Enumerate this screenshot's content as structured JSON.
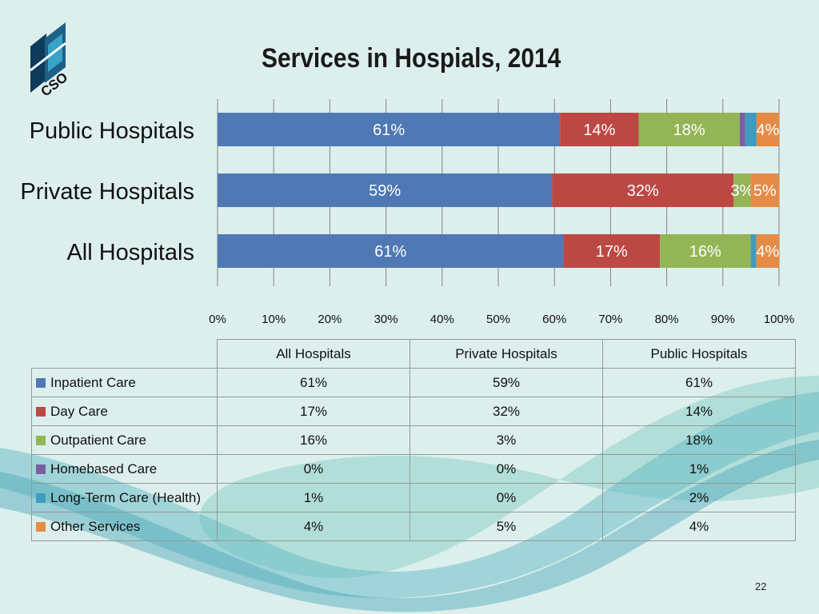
{
  "page": {
    "number": "22"
  },
  "logo": {
    "text": "CSO"
  },
  "chart_data": {
    "type": "bar",
    "orientation": "horizontal",
    "stacked": "percent",
    "title": "Services in Hospials, 2014",
    "categories": [
      "Public Hospitals",
      "Private Hospitals",
      "All Hospitals"
    ],
    "series": [
      {
        "name": "Inpatient Care",
        "color": "#4f78b4",
        "values": [
          61,
          59,
          61
        ],
        "labels": [
          "61%",
          "59%",
          "61%"
        ]
      },
      {
        "name": "Day Care",
        "color": "#bc4844",
        "values": [
          14,
          32,
          17
        ],
        "labels": [
          "14%",
          "32%",
          "17%"
        ]
      },
      {
        "name": "Outpatient Care",
        "color": "#94b556",
        "values": [
          18,
          3,
          16
        ],
        "labels": [
          "18%",
          "3%",
          "16%"
        ]
      },
      {
        "name": "Homebased Care",
        "color": "#7a5fa0",
        "values": [
          1,
          0,
          0
        ],
        "labels": [
          "",
          "",
          ""
        ]
      },
      {
        "name": "Long-Term Care (Health)",
        "color": "#3d9cbf",
        "values": [
          2,
          0,
          1
        ],
        "labels": [
          "",
          "",
          ""
        ]
      },
      {
        "name": "Other Services",
        "color": "#e68a45",
        "values": [
          4,
          5,
          4
        ],
        "labels": [
          "4%",
          "5%",
          "4%"
        ]
      }
    ],
    "xlim": [
      0,
      100
    ],
    "xticks": [
      "0%",
      "10%",
      "20%",
      "30%",
      "40%",
      "50%",
      "60%",
      "70%",
      "80%",
      "90%",
      "100%"
    ],
    "grid": true,
    "xlabel": "",
    "ylabel": ""
  },
  "table": {
    "columns": [
      "All Hospitals",
      "Private Hospitals",
      "Public Hospitals"
    ],
    "rows": [
      {
        "label": "Inpatient Care",
        "color": "#4f78b4",
        "values": [
          "61%",
          "59%",
          "61%"
        ]
      },
      {
        "label": "Day Care",
        "color": "#bc4844",
        "values": [
          "17%",
          "32%",
          "14%"
        ]
      },
      {
        "label": "Outpatient Care",
        "color": "#94b556",
        "values": [
          "16%",
          "3%",
          "18%"
        ]
      },
      {
        "label": "Homebased Care",
        "color": "#7a5fa0",
        "values": [
          "0%",
          "0%",
          "1%"
        ]
      },
      {
        "label": "Long-Term Care (Health)",
        "color": "#3d9cbf",
        "values": [
          "1%",
          "0%",
          "2%"
        ]
      },
      {
        "label": "Other Services",
        "color": "#e68a45",
        "values": [
          "4%",
          "5%",
          "4%"
        ]
      }
    ]
  }
}
